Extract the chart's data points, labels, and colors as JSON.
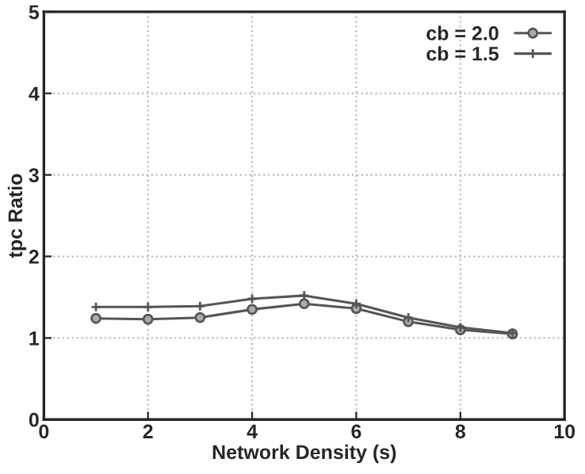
{
  "chart_data": {
    "type": "line",
    "xlabel": "Network Density (s)",
    "ylabel": "tpc Ratio",
    "x": [
      1,
      2,
      3,
      4,
      5,
      6,
      7,
      8,
      9
    ],
    "series": [
      {
        "name": "cb = 2.0",
        "color": "#555555",
        "marker": "circle",
        "values": [
          1.24,
          1.23,
          1.25,
          1.35,
          1.42,
          1.36,
          1.2,
          1.1,
          1.05
        ]
      },
      {
        "name": "cb = 1.5",
        "color": "#555555",
        "marker": "cross",
        "values": [
          1.38,
          1.38,
          1.39,
          1.48,
          1.52,
          1.42,
          1.25,
          1.13,
          1.06
        ]
      }
    ],
    "xlim": [
      0,
      10
    ],
    "xticks": [
      0,
      2,
      4,
      6,
      8,
      10
    ],
    "ylim": [
      0,
      5
    ],
    "yticks": [
      0,
      1,
      2,
      3,
      4,
      5
    ],
    "grid": true,
    "legend": "top right",
    "line_style": "solid"
  }
}
